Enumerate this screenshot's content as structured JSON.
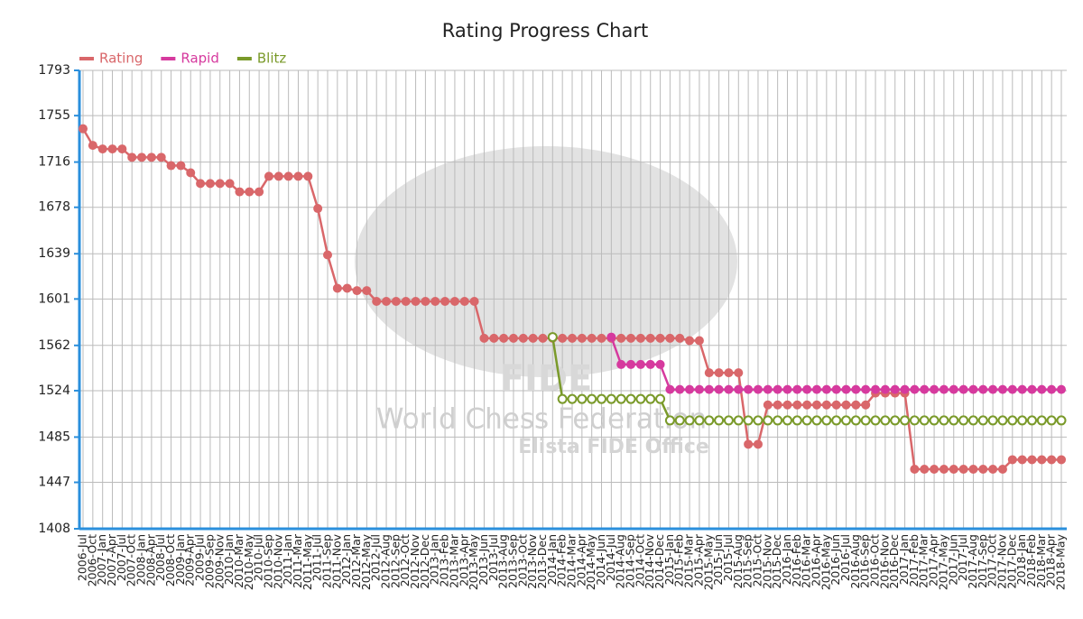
{
  "chart_data": {
    "type": "line",
    "title": "Rating Progress Chart",
    "watermark": [
      "FIDE",
      "World Chess Federation",
      "Elista FIDE Office"
    ],
    "legend": "top-left",
    "grid": true,
    "categories": [
      "2006-Jul",
      "2006-Oct",
      "2007-Jan",
      "2007-Apr",
      "2007-Jul",
      "2007-Oct",
      "2008-Jan",
      "2008-Apr",
      "2008-Jul",
      "2008-Oct",
      "2009-Jan",
      "2009-Apr",
      "2009-Jul",
      "2009-Sep",
      "2009-Nov",
      "2010-Jan",
      "2010-Mar",
      "2010-May",
      "2010-Jul",
      "2010-Sep",
      "2010-Nov",
      "2011-Jan",
      "2011-Mar",
      "2011-May",
      "2011-Jul",
      "2011-Sep",
      "2011-Nov",
      "2012-Jan",
      "2012-Mar",
      "2012-May",
      "2012-Jul",
      "2012-Aug",
      "2012-Sep",
      "2012-Oct",
      "2012-Nov",
      "2012-Dec",
      "2013-Jan",
      "2013-Feb",
      "2013-Mar",
      "2013-Apr",
      "2013-May",
      "2013-Jun",
      "2013-Jul",
      "2013-Aug",
      "2013-Sep",
      "2013-Oct",
      "2013-Nov",
      "2013-Dec",
      "2014-Jan",
      "2014-Feb",
      "2014-Mar",
      "2014-Apr",
      "2014-May",
      "2014-Jun",
      "2014-Jul",
      "2014-Aug",
      "2014-Sep",
      "2014-Oct",
      "2014-Nov",
      "2014-Dec",
      "2015-Jan",
      "2015-Feb",
      "2015-Mar",
      "2015-Apr",
      "2015-May",
      "2015-Jun",
      "2015-Jul",
      "2015-Aug",
      "2015-Sep",
      "2015-Oct",
      "2015-Nov",
      "2015-Dec",
      "2016-Jan",
      "2016-Feb",
      "2016-Mar",
      "2016-Apr",
      "2016-May",
      "2016-Jun",
      "2016-Jul",
      "2016-Aug",
      "2016-Sep",
      "2016-Oct",
      "2016-Nov",
      "2016-Dec",
      "2017-Jan",
      "2017-Feb",
      "2017-Mar",
      "2017-Apr",
      "2017-May",
      "2017-Jun",
      "2017-Jul",
      "2017-Aug",
      "2017-Sep",
      "2017-Oct",
      "2017-Nov",
      "2017-Dec",
      "2018-Jan",
      "2018-Feb",
      "2018-Mar",
      "2018-Apr",
      "2018-May"
    ],
    "series": [
      {
        "name": "Rating",
        "color": "#d9676a",
        "marker": "filled",
        "values": [
          1744,
          1730,
          1727,
          1727,
          1727,
          1720,
          1720,
          1720,
          1720,
          1713,
          1713,
          1707,
          1698,
          1698,
          1698,
          1698,
          1691,
          1691,
          1691,
          1704,
          1704,
          1704,
          1704,
          1704,
          1677,
          1638,
          1610,
          1610,
          1608,
          1608,
          1599,
          1599,
          1599,
          1599,
          1599,
          1599,
          1599,
          1599,
          1599,
          1599,
          1599,
          1568,
          1568,
          1568,
          1568,
          1568,
          1568,
          1568,
          1568,
          1568,
          1568,
          1568,
          1568,
          1568,
          1568,
          1568,
          1568,
          1568,
          1568,
          1568,
          1568,
          1568,
          1566,
          1566,
          1539,
          1539,
          1539,
          1539,
          1479,
          1479,
          1512,
          1512,
          1512,
          1512,
          1512,
          1512,
          1512,
          1512,
          1512,
          1512,
          1512,
          1522,
          1522,
          1522,
          1522,
          1458,
          1458,
          1458,
          1458,
          1458,
          1458,
          1458,
          1458,
          1458,
          1458,
          1466,
          1466,
          1466,
          1466,
          1466,
          1466
        ]
      },
      {
        "name": "Rapid",
        "color": "#d63a9e",
        "marker": "filled",
        "values": [
          null,
          null,
          null,
          null,
          null,
          null,
          null,
          null,
          null,
          null,
          null,
          null,
          null,
          null,
          null,
          null,
          null,
          null,
          null,
          null,
          null,
          null,
          null,
          null,
          null,
          null,
          null,
          null,
          null,
          null,
          null,
          null,
          null,
          null,
          null,
          null,
          null,
          null,
          null,
          null,
          null,
          null,
          null,
          null,
          null,
          null,
          null,
          null,
          null,
          null,
          null,
          null,
          null,
          null,
          1569,
          1546,
          1546,
          1546,
          1546,
          1546,
          1525,
          1525,
          1525,
          1525,
          1525,
          1525,
          1525,
          1525,
          1525,
          1525,
          1525,
          1525,
          1525,
          1525,
          1525,
          1525,
          1525,
          1525,
          1525,
          1525,
          1525,
          1525,
          1525,
          1525,
          1525,
          1525,
          1525,
          1525,
          1525,
          1525,
          1525,
          1525,
          1525,
          1525,
          1525,
          1525,
          1525,
          1525,
          1525,
          1525,
          1525
        ]
      },
      {
        "name": "Blitz",
        "color": "#7a9a2a",
        "marker": "hollow",
        "values": [
          null,
          null,
          null,
          null,
          null,
          null,
          null,
          null,
          null,
          null,
          null,
          null,
          null,
          null,
          null,
          null,
          null,
          null,
          null,
          null,
          null,
          null,
          null,
          null,
          null,
          null,
          null,
          null,
          null,
          null,
          null,
          null,
          null,
          null,
          null,
          null,
          null,
          null,
          null,
          null,
          null,
          null,
          null,
          null,
          null,
          null,
          null,
          null,
          1569,
          1517,
          1517,
          1517,
          1517,
          1517,
          1517,
          1517,
          1517,
          1517,
          1517,
          1517,
          1499,
          1499,
          1499,
          1499,
          1499,
          1499,
          1499,
          1499,
          1499,
          1499,
          1499,
          1499,
          1499,
          1499,
          1499,
          1499,
          1499,
          1499,
          1499,
          1499,
          1499,
          1499,
          1499,
          1499,
          1499,
          1499,
          1499,
          1499,
          1499,
          1499,
          1499,
          1499,
          1499,
          1499,
          1499,
          1499,
          1499,
          1499,
          1499,
          1499,
          1499
        ]
      }
    ],
    "ylim": [
      1408,
      1793
    ],
    "yticks": [
      1408,
      1447,
      1485,
      1524,
      1562,
      1601,
      1639,
      1678,
      1716,
      1755,
      1793
    ]
  }
}
